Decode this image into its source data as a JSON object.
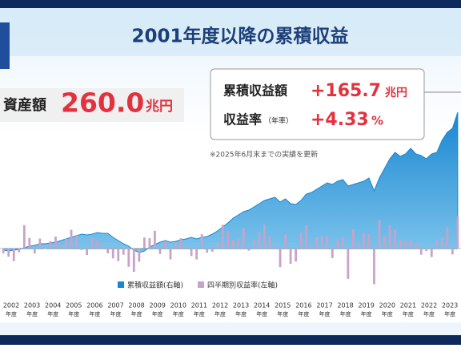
{
  "chart_data": {
    "type": "area-bar",
    "title": "2001年度以降の累積収益",
    "assets": {
      "label": "資産額",
      "value": "260.0",
      "unit": "兆円"
    },
    "callout": {
      "return_label": "累積収益額",
      "return_value": "+165.7",
      "return_unit": "兆円",
      "rate_label": "収益率",
      "rate_note": "（年率）",
      "rate_value": "+4.33",
      "rate_unit": "%"
    },
    "note": "※2025年6月末までの実績を更新",
    "category_unit": "年度",
    "categories": [
      null,
      null,
      "2002",
      null,
      null,
      null,
      "2003",
      null,
      null,
      null,
      "2004",
      null,
      null,
      null,
      "2005",
      null,
      null,
      null,
      "2006",
      null,
      null,
      null,
      "2007",
      null,
      null,
      null,
      "2008",
      null,
      null,
      null,
      "2009",
      null,
      null,
      null,
      "2010",
      null,
      null,
      null,
      "2011",
      null,
      null,
      null,
      "2012",
      null,
      null,
      null,
      "2013",
      null,
      null,
      null,
      "2014",
      null,
      null,
      null,
      "2015",
      null,
      null,
      null,
      "2016",
      null,
      null,
      null,
      "2017",
      null,
      null,
      null,
      "2018",
      null,
      null,
      null,
      "2019",
      null,
      null,
      null,
      "2020",
      null,
      null,
      null,
      "2021",
      null,
      null,
      null,
      "2022",
      null,
      null,
      null,
      "2023",
      null
    ],
    "series": [
      {
        "name": "累積収益額(右軸)",
        "color": "#1a86d0",
        "axis": "y2",
        "values": [
          -2,
          -3,
          -2,
          -1,
          1,
          3,
          4,
          6,
          6,
          7,
          8,
          10,
          12,
          14,
          16,
          18,
          17,
          18,
          20,
          19,
          19,
          14,
          10,
          6,
          3,
          -2,
          -5,
          -3,
          2,
          5,
          8,
          10,
          8,
          9,
          11,
          12,
          14,
          12,
          14,
          15,
          18,
          22,
          27,
          32,
          38,
          42,
          46,
          48,
          52,
          56,
          60,
          62,
          64,
          58,
          62,
          56,
          55,
          60,
          68,
          70,
          74,
          78,
          82,
          80,
          84,
          86,
          78,
          80,
          82,
          84,
          88,
          72,
          88,
          100,
          112,
          120,
          115,
          118,
          125,
          118,
          116,
          112,
          118,
          120,
          135,
          145,
          150,
          170
        ]
      },
      {
        "name": "四半期別収益率(左軸)",
        "color": "#c9a2c8",
        "values": [
          -1.5,
          -2.5,
          -3.8,
          -1.2,
          6.9,
          3.1,
          -1.5,
          2.9,
          -0.2,
          2.1,
          3.5,
          1.0,
          2.8,
          5.5,
          4.0,
          -0.5,
          -2.0,
          3.3,
          2.5,
          1.2,
          -1.5,
          -3.0,
          -3.8,
          -1.9,
          -5.5,
          -7.0,
          -4.0,
          3.2,
          3.0,
          5.2,
          -1.7,
          2.1,
          -3.3,
          1.5,
          3.0,
          0.8,
          -2.3,
          -3.3,
          4.2,
          -1.3,
          -1.0,
          1.4,
          7.0,
          5.2,
          2.5,
          2.8,
          6.1,
          -0.7,
          2.6,
          4.8,
          7.1,
          3.5,
          1.0,
          -5.6,
          4.1,
          -4.6,
          -3.9,
          4.6,
          6.9,
          1.1,
          3.3,
          3.6,
          3.6,
          -2.9,
          2.5,
          3.4,
          -9.1,
          5.7,
          1.6,
          4.6,
          4.2,
          -10.7,
          8.3,
          3.6,
          6.9,
          5.6,
          2.5,
          2.2,
          2.3,
          1.3,
          -1.9,
          -0.8,
          -2.6,
          2.4,
          3.3,
          6.3,
          -1.8,
          9.4
        ]
      }
    ],
    "ylim": [
      -12,
      50
    ],
    "y2lim": [
      -50,
      210
    ]
  }
}
